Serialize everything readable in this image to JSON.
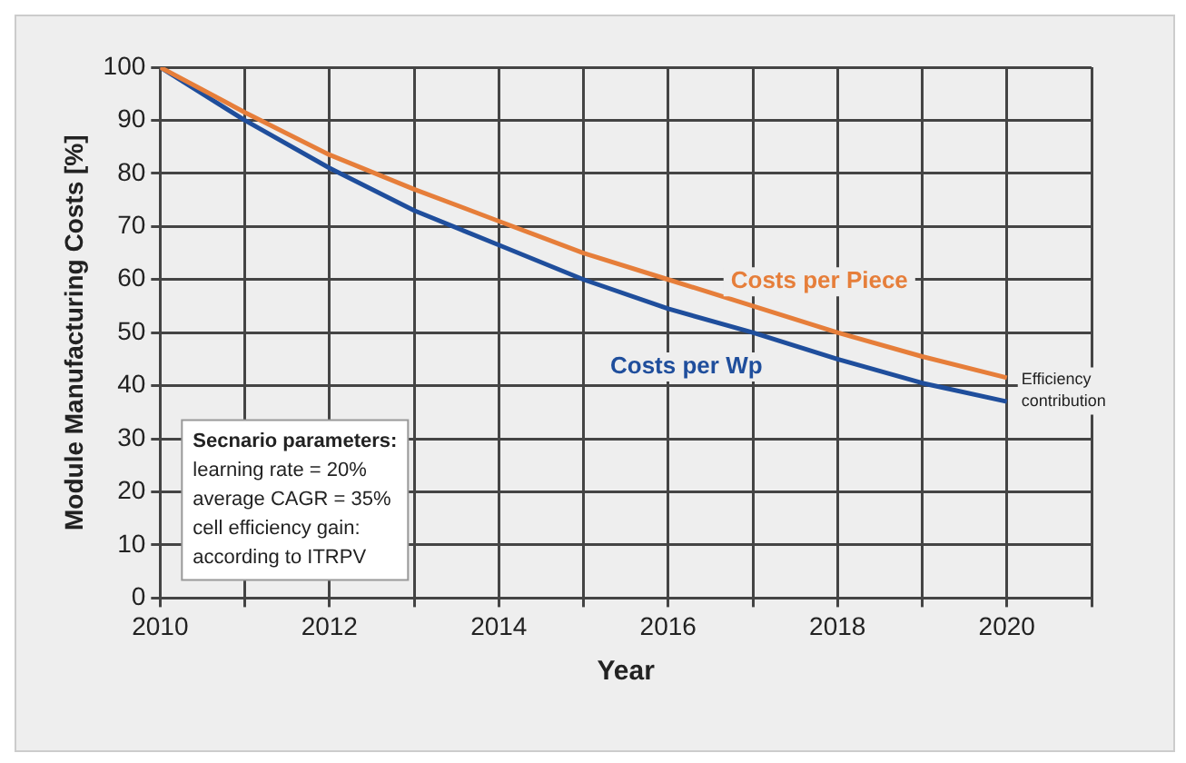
{
  "chart_data": {
    "type": "line",
    "xlabel": "Year",
    "ylabel": "Module Manufacturing Costs [%]",
    "x": [
      2010,
      2011,
      2012,
      2013,
      2014,
      2015,
      2016,
      2017,
      2018,
      2019,
      2020
    ],
    "series": [
      {
        "name": "Costs per Piece",
        "color": "#e67e3a",
        "values": [
          100,
          91.5,
          83.5,
          77,
          71,
          65,
          60,
          55,
          50,
          45.5,
          41.5
        ]
      },
      {
        "name": "Costs per Wp",
        "color": "#1f4e9c",
        "values": [
          100,
          90,
          81,
          73,
          66.5,
          60,
          54.5,
          50,
          45,
          40.5,
          37
        ]
      }
    ],
    "xlim": [
      2010,
      2021
    ],
    "xticks": [
      2010,
      {
        "value": 2011,
        "label": null
      },
      2012,
      {
        "value": 2013,
        "label": null
      },
      2014,
      {
        "value": 2015,
        "label": null
      },
      2016,
      {
        "value": 2017,
        "label": null
      },
      2018,
      {
        "value": 2019,
        "label": null
      },
      2020,
      {
        "value": 2021,
        "label": null
      }
    ],
    "ylim": [
      0,
      100
    ],
    "yticks": [
      0,
      10,
      20,
      30,
      40,
      50,
      60,
      70,
      80,
      90,
      100
    ],
    "grid": true,
    "legend": false,
    "marker": "none",
    "line_style": "solid",
    "annotations": [
      "Secnario parameters:",
      "learning rate = 20%",
      "average CAGR = 35%",
      "cell efficiency gain:",
      "according to ITRPV",
      {
        "text": "Efficiency contribution",
        "x": 2020,
        "y": 39
      }
    ]
  }
}
